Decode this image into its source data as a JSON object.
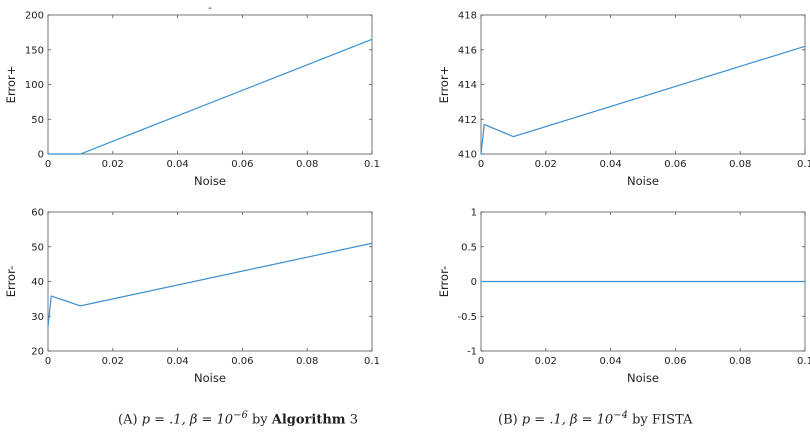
{
  "chart_data": [
    {
      "type": "line",
      "panel": "A-top",
      "title": "-",
      "xlabel": "Noise",
      "ylabel": "Error+",
      "xlim": [
        0,
        0.1
      ],
      "ylim": [
        0,
        200
      ],
      "xticks": [
        "0",
        "0.02",
        "0.04",
        "0.06",
        "0.08",
        "0.1"
      ],
      "yticks": [
        "0",
        "50",
        "100",
        "150",
        "200"
      ],
      "series": [
        {
          "x": [
            0,
            0.01,
            0.1
          ],
          "y": [
            0,
            0,
            165
          ]
        }
      ]
    },
    {
      "type": "line",
      "panel": "B-top",
      "title": "",
      "xlabel": "Noise",
      "ylabel": "Error+",
      "xlim": [
        0,
        0.1
      ],
      "ylim": [
        410,
        418
      ],
      "xticks": [
        "0",
        "0.02",
        "0.04",
        "0.06",
        "0.08",
        "0.1"
      ],
      "yticks": [
        "410",
        "412",
        "414",
        "416",
        "418"
      ],
      "series": [
        {
          "x": [
            0,
            0.001,
            0.01,
            0.1
          ],
          "y": [
            410,
            411.7,
            411,
            416.2
          ]
        }
      ]
    },
    {
      "type": "line",
      "panel": "A-bottom",
      "title": "",
      "xlabel": "Noise",
      "ylabel": "Error-",
      "xlim": [
        0,
        0.1
      ],
      "ylim": [
        20,
        60
      ],
      "xticks": [
        "0",
        "0.02",
        "0.04",
        "0.06",
        "0.08",
        "0.1"
      ],
      "yticks": [
        "20",
        "30",
        "40",
        "50",
        "60"
      ],
      "series": [
        {
          "x": [
            0,
            0.001,
            0.01,
            0.1
          ],
          "y": [
            27,
            35.8,
            33,
            51
          ]
        }
      ]
    },
    {
      "type": "line",
      "panel": "B-bottom",
      "title": "",
      "xlabel": "Noise",
      "ylabel": "Error-",
      "xlim": [
        0,
        0.1
      ],
      "ylim": [
        -1,
        1
      ],
      "xticks": [
        "0",
        "0.02",
        "0.04",
        "0.06",
        "0.08",
        "0.1"
      ],
      "yticks": [
        "-1",
        "-0.5",
        "0",
        "0.5",
        "1"
      ],
      "series": [
        {
          "x": [
            0,
            0.1
          ],
          "y": [
            0,
            0
          ]
        }
      ]
    }
  ],
  "captions": {
    "a": {
      "tag": "(A)",
      "text": "p = .1, β = 10",
      "exp": "−6",
      "by": "by",
      "alg": "Algorithm",
      "num": "3"
    },
    "b": {
      "tag": "(B)",
      "text": "p = .1, β = 10",
      "exp": "−4",
      "by": "by",
      "alg": "FISTA"
    }
  },
  "colors": {
    "line": "#3a8fd0",
    "frame": "#555555",
    "text": "#222222"
  }
}
